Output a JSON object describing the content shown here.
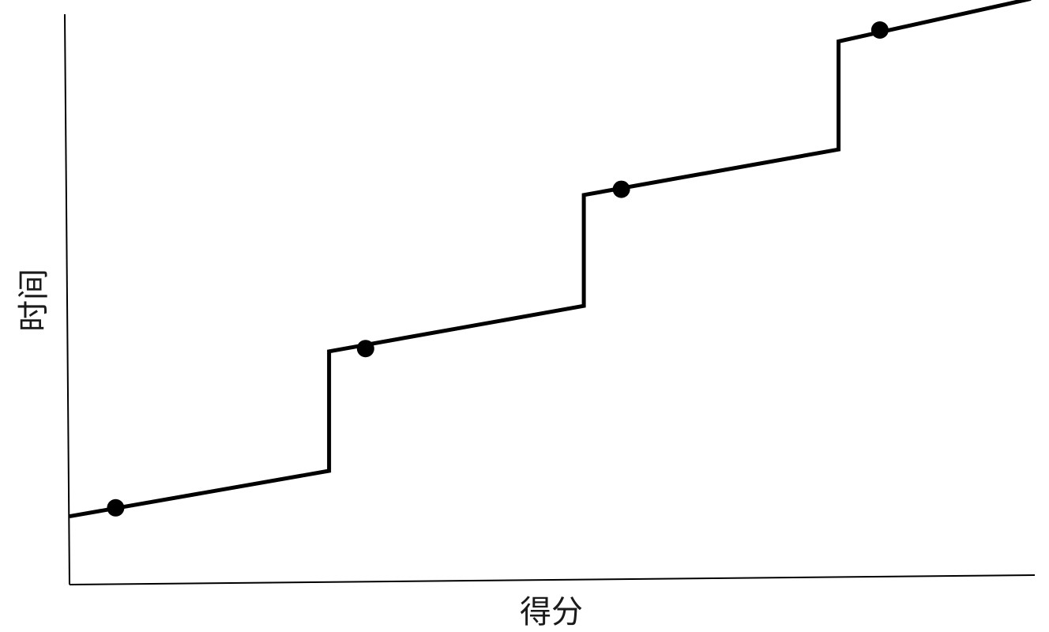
{
  "chart_data": {
    "type": "line",
    "title": "",
    "xlabel": "得分",
    "ylabel": "时间",
    "x_ticks": [],
    "y_ticks": [],
    "grid": false,
    "legend": "none",
    "xlim": [
      0,
      100
    ],
    "ylim": [
      0,
      100
    ],
    "series": [
      {
        "style": "step-line",
        "color": "#000000",
        "x": [
          0,
          27,
          27,
          53.5,
          53.5,
          80,
          80,
          100
        ],
        "y": [
          12,
          20,
          41,
          49,
          68.5,
          76.5,
          95.5,
          103
        ]
      },
      {
        "style": "markers",
        "color": "#000000",
        "x": [
          4.8,
          30.8,
          57.4,
          84.3
        ],
        "y": [
          13.5,
          41.5,
          69.5,
          97.5
        ]
      }
    ]
  },
  "colors": {
    "line": "#000000",
    "axis": "#000000",
    "background": "#ffffff"
  }
}
